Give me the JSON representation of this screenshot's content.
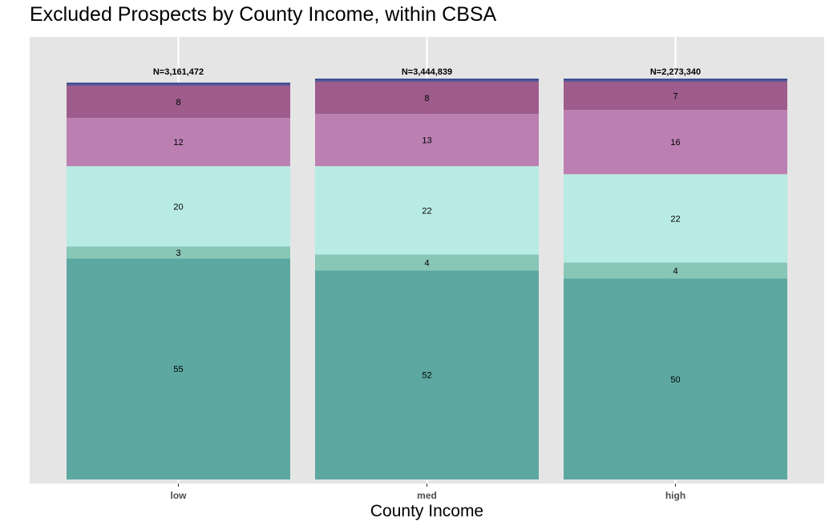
{
  "chart_data": {
    "type": "bar",
    "stacked": true,
    "normalized": true,
    "title": "Excluded Prospects by County Income, within CBSA",
    "xlabel": "County Income",
    "ylabel": "",
    "ylim": [
      0,
      100
    ],
    "grid": true,
    "legend": "none",
    "categories": [
      "low",
      "med",
      "high"
    ],
    "totals": [
      "N=3,161,472",
      "N=3,444,839",
      "N=2,273,340"
    ],
    "series": [
      {
        "values": [
          55,
          52,
          50
        ],
        "color": "#5ca8a0"
      },
      {
        "values": [
          3,
          4,
          4
        ],
        "color": "#88c6b6"
      },
      {
        "values": [
          20,
          22,
          22
        ],
        "color": "#b8ebe3"
      },
      {
        "values": [
          12,
          13,
          16
        ],
        "color": "#bb7fb2"
      },
      {
        "values": [
          8,
          8,
          7
        ],
        "color": "#9e5c8c"
      },
      {
        "values": [
          0.4,
          0.4,
          0.4
        ],
        "color": "#5a5a96",
        "show_label": false
      },
      {
        "values": [
          0.4,
          0.4,
          0.4
        ],
        "color": "#3f4f8f",
        "show_label": false
      }
    ],
    "panel_background": "#e5e5e5",
    "gridline_color": "#ffffff"
  }
}
